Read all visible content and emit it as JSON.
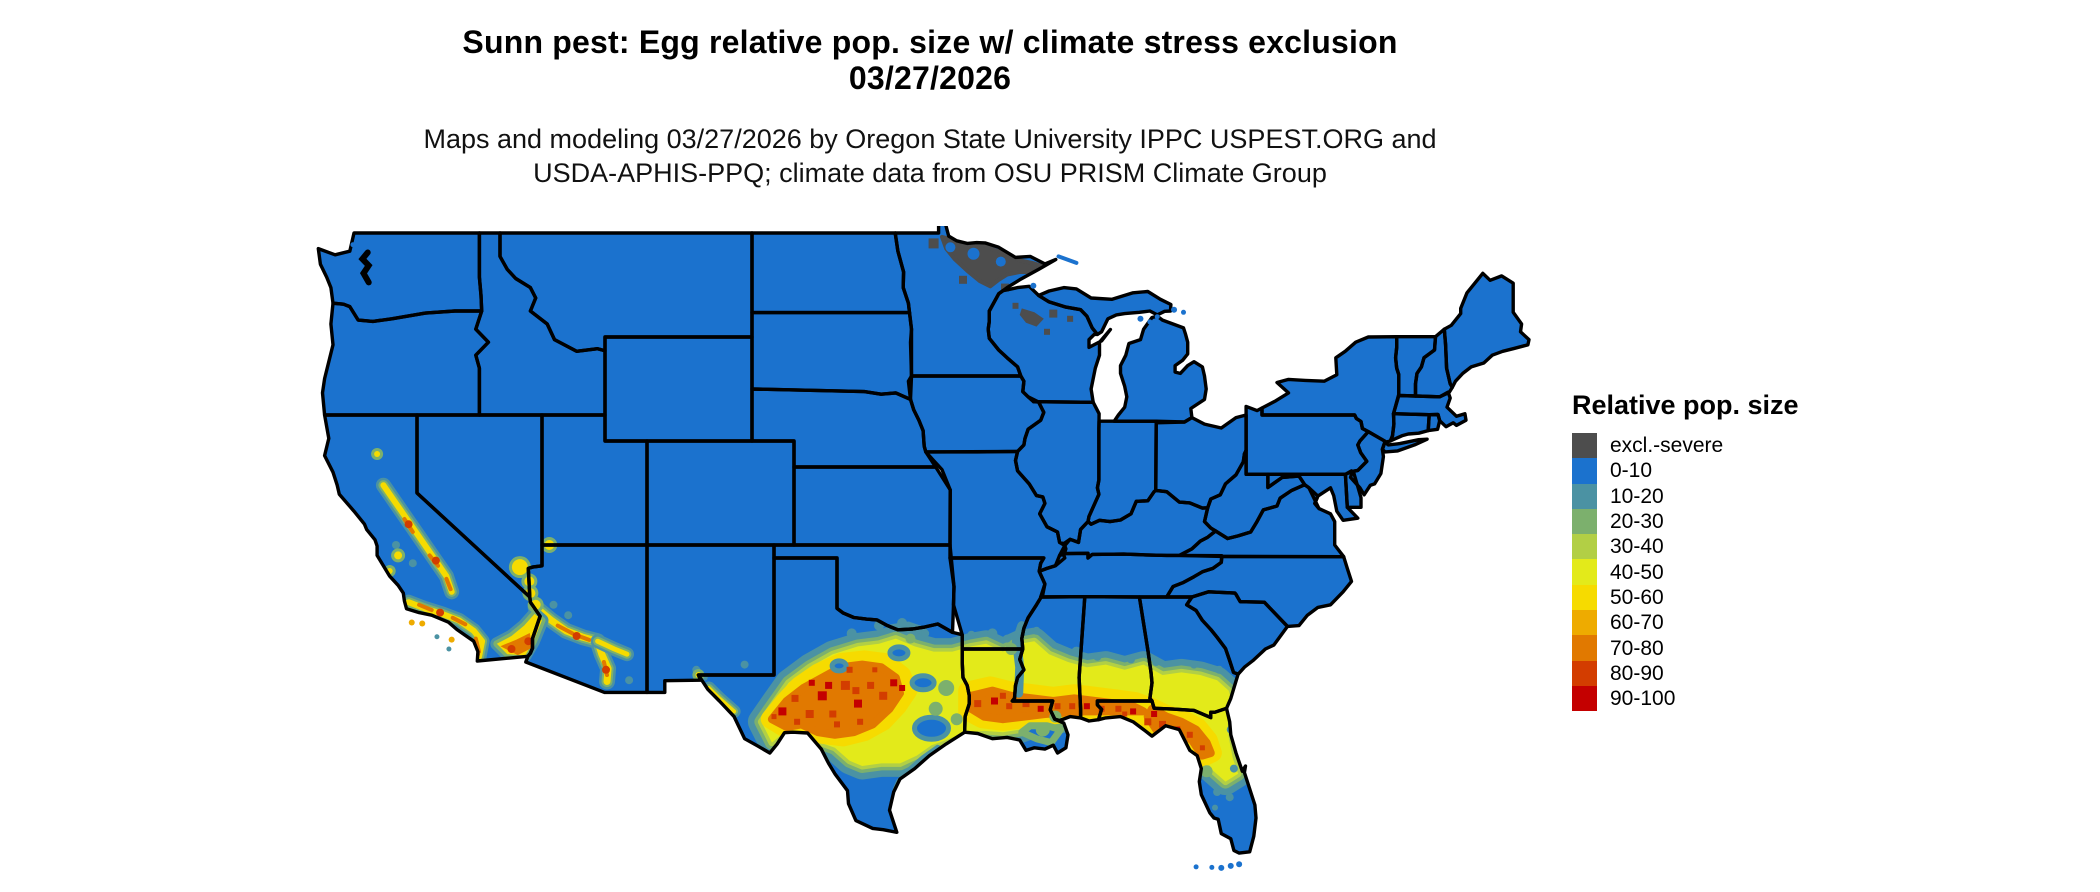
{
  "header": {
    "title_line1": "Sunn pest: Egg relative pop. size w/ climate stress exclusion",
    "title_line2": "03/27/2026",
    "caption_line1": "Maps and modeling 03/27/2026 by Oregon State University IPPC USPEST.ORG and",
    "caption_line2": "USDA-APHIS-PPQ; climate data from OSU PRISM Climate Group"
  },
  "legend": {
    "title": "Relative pop. size",
    "entries": [
      {
        "label": "excl.-severe",
        "color": "#4D4D4D"
      },
      {
        "label": "0-10",
        "color": "#1B72CE"
      },
      {
        "label": "10-20",
        "color": "#4B92A3"
      },
      {
        "label": "20-30",
        "color": "#7CB06D"
      },
      {
        "label": "30-40",
        "color": "#B2CF45"
      },
      {
        "label": "40-50",
        "color": "#E3EA1A"
      },
      {
        "label": "50-60",
        "color": "#F6DB00"
      },
      {
        "label": "60-70",
        "color": "#EEAB00"
      },
      {
        "label": "70-80",
        "color": "#E17900"
      },
      {
        "label": "80-90",
        "color": "#D33D00"
      },
      {
        "label": "90-100",
        "color": "#C40000"
      }
    ]
  },
  "map": {
    "region": "Contiguous United States",
    "type": "raster choropleth with state boundaries",
    "border_color": "#000000",
    "background_color": "#FFFFFF",
    "base_class": "0-10",
    "exclusion_severe_areas": [
      "northern Minnesota border region",
      "north-central Wisconsin"
    ],
    "high_relative_pop_areas": [
      "central Texas",
      "southern Louisiana",
      "gulf coast of Mississippi and Alabama",
      "southern Georgia",
      "north Florida panhandle",
      "southern California valleys and coast",
      "central and southern Arizona"
    ],
    "low_relative_pop_areas": [
      "northern and eastern states",
      "south Texas",
      "central and south Florida",
      "Rocky Mountain states",
      "Pacific Northwest"
    ]
  }
}
